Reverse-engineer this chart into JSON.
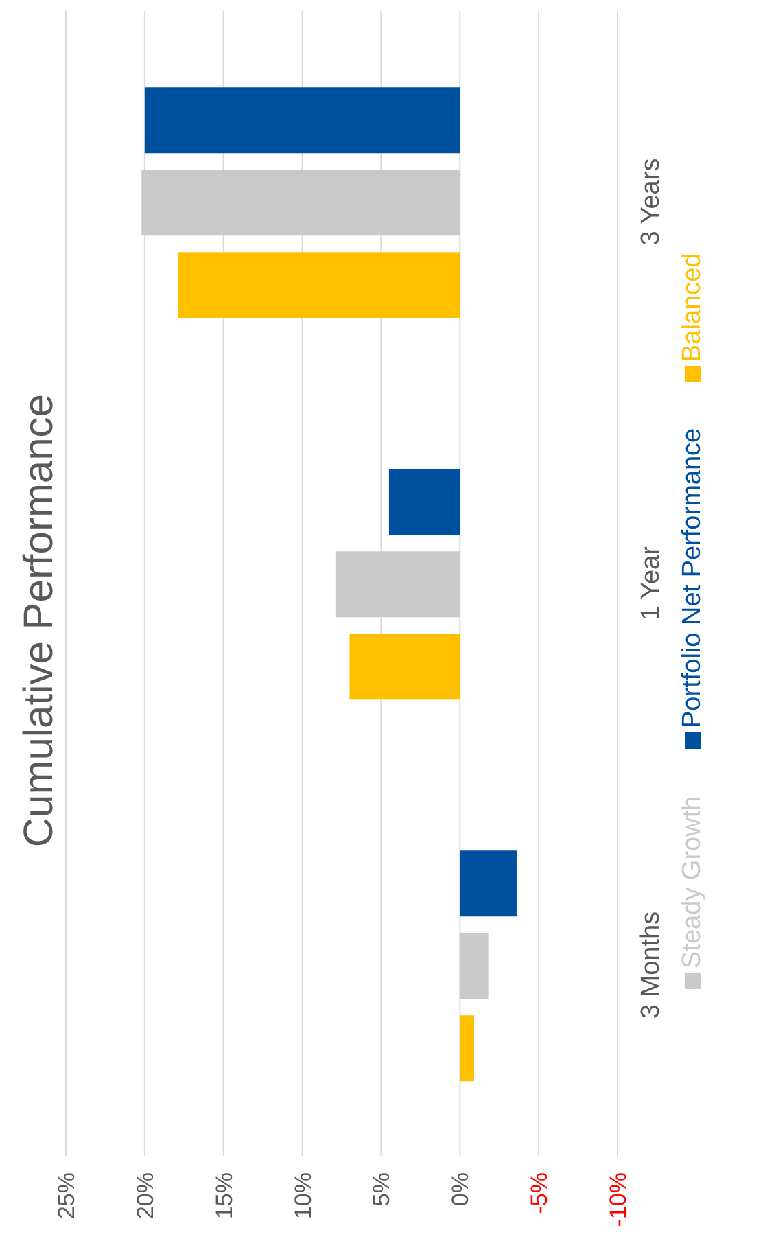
{
  "chart_data": {
    "type": "bar",
    "orientation": "horizontal",
    "title": "Cumulative Performance",
    "categories": [
      "3 Years",
      "1 Year",
      "3 Months"
    ],
    "series": [
      {
        "name": "Portfolio Net Performance",
        "color": "#0050a0",
        "values": [
          20.0,
          4.5,
          -3.6
        ]
      },
      {
        "name": "Steady Growth",
        "color": "#c9c9c9",
        "values": [
          20.2,
          7.9,
          -1.8
        ]
      },
      {
        "name": "Balanced",
        "color": "#ffc000",
        "values": [
          17.9,
          7.0,
          -0.9
        ]
      }
    ],
    "xlim": [
      25,
      -10
    ],
    "xticks": [
      {
        "value": 25,
        "label": "25%"
      },
      {
        "value": 20,
        "label": "20%"
      },
      {
        "value": 15,
        "label": "15%"
      },
      {
        "value": 10,
        "label": "10%"
      },
      {
        "value": 5,
        "label": "5%"
      },
      {
        "value": 0,
        "label": "0%"
      },
      {
        "value": -5,
        "label": "-5%"
      },
      {
        "value": -10,
        "label": "-10%"
      }
    ],
    "grid": "x",
    "legend": "right"
  }
}
